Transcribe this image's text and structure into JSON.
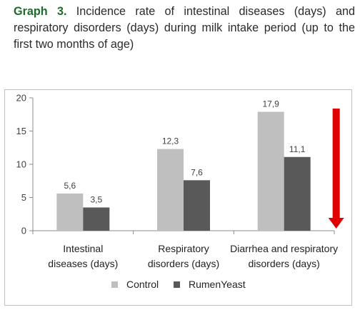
{
  "caption": {
    "prefix": "Graph 3.",
    "text": "Incidence rate of intestinal diseases (days) and respiratory disorders (days) during milk intake period (up to the first two months of age)"
  },
  "chart_data": {
    "type": "bar",
    "categories": [
      [
        "Intestinal",
        "diseases (days)"
      ],
      [
        "Respiratory",
        "disorders (days)"
      ],
      [
        "Diarrhea and respiratory",
        "disorders (days)"
      ]
    ],
    "series": [
      {
        "name": "Control",
        "values": [
          5.6,
          12.3,
          17.9
        ],
        "labels": [
          "5,6",
          "12,3",
          "17,9"
        ],
        "color": "#bfbfbf"
      },
      {
        "name": "RumenYeast",
        "values": [
          3.5,
          7.6,
          11.1
        ],
        "labels": [
          "3,5",
          "7,6",
          "11,1"
        ],
        "color": "#595959"
      }
    ],
    "yticks": [
      "0",
      "5",
      "10",
      "15",
      "20"
    ],
    "ylim": [
      0,
      20
    ],
    "grid": false,
    "legend": "bottom",
    "annotation": {
      "type": "down-arrow",
      "color": "#e00000",
      "category_index": 2
    }
  }
}
